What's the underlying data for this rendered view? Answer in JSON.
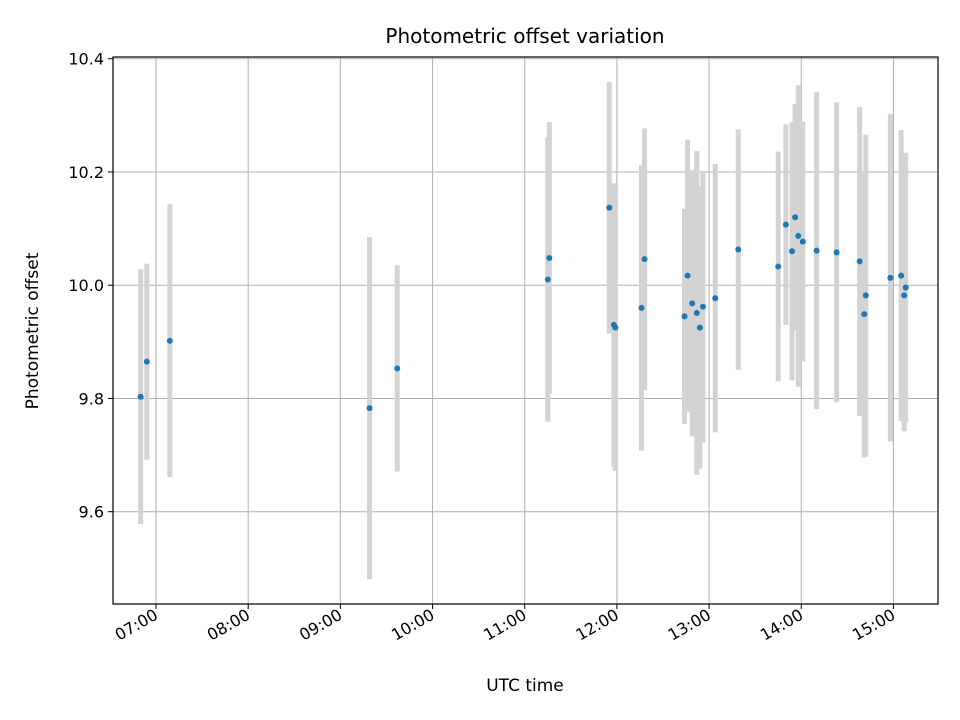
{
  "chart_data": {
    "type": "scatter",
    "title": "Photometric offset variation",
    "xlabel": "UTC time",
    "ylabel": "Photometric offset",
    "x_unit": "UTC hour",
    "xlim": [
      "06:32",
      "15:29"
    ],
    "ylim": [
      9.437,
      10.403
    ],
    "x_ticks": [
      "07:00",
      "08:00",
      "09:00",
      "10:00",
      "11:00",
      "12:00",
      "13:00",
      "14:00",
      "15:00"
    ],
    "y_ticks": [
      9.6,
      9.8,
      10.0,
      10.2,
      10.4
    ],
    "grid": true,
    "errorbar_color": "#d3d3d3",
    "point_color": "#1f77b4",
    "points": [
      {
        "x": "06:50",
        "y": 9.803,
        "yerr": 0.225
      },
      {
        "x": "06:54",
        "y": 9.865,
        "yerr": 0.173
      },
      {
        "x": "07:09",
        "y": 9.902,
        "yerr": 0.241
      },
      {
        "x": "09:19",
        "y": 9.783,
        "yerr": 0.302
      },
      {
        "x": "09:37",
        "y": 9.853,
        "yerr": 0.182
      },
      {
        "x": "11:15",
        "y": 10.01,
        "yerr": 0.251
      },
      {
        "x": "11:16",
        "y": 10.048,
        "yerr": 0.24
      },
      {
        "x": "11:55",
        "y": 10.137,
        "yerr": 0.222
      },
      {
        "x": "11:58",
        "y": 9.93,
        "yerr": 0.25
      },
      {
        "x": "11:59",
        "y": 9.925,
        "yerr": 0.253
      },
      {
        "x": "12:16",
        "y": 9.96,
        "yerr": 0.252
      },
      {
        "x": "12:18",
        "y": 10.046,
        "yerr": 0.231
      },
      {
        "x": "12:44",
        "y": 9.945,
        "yerr": 0.19
      },
      {
        "x": "12:46",
        "y": 10.017,
        "yerr": 0.24
      },
      {
        "x": "12:49",
        "y": 9.968,
        "yerr": 0.235
      },
      {
        "x": "12:52",
        "y": 9.951,
        "yerr": 0.286
      },
      {
        "x": "12:54",
        "y": 9.925,
        "yerr": 0.249
      },
      {
        "x": "12:56",
        "y": 9.962,
        "yerr": 0.24
      },
      {
        "x": "13:04",
        "y": 9.977,
        "yerr": 0.237
      },
      {
        "x": "13:19",
        "y": 10.063,
        "yerr": 0.212
      },
      {
        "x": "13:45",
        "y": 10.033,
        "yerr": 0.203
      },
      {
        "x": "13:50",
        "y": 10.107,
        "yerr": 0.177
      },
      {
        "x": "13:54",
        "y": 10.06,
        "yerr": 0.228
      },
      {
        "x": "13:56",
        "y": 10.12,
        "yerr": 0.2
      },
      {
        "x": "13:58",
        "y": 10.087,
        "yerr": 0.266
      },
      {
        "x": "14:01",
        "y": 10.077,
        "yerr": 0.212
      },
      {
        "x": "14:10",
        "y": 10.061,
        "yerr": 0.28
      },
      {
        "x": "14:23",
        "y": 10.058,
        "yerr": 0.265
      },
      {
        "x": "14:38",
        "y": 10.042,
        "yerr": 0.273
      },
      {
        "x": "14:41",
        "y": 9.949,
        "yerr": 0.253
      },
      {
        "x": "14:42",
        "y": 9.982,
        "yerr": 0.284
      },
      {
        "x": "14:58",
        "y": 10.013,
        "yerr": 0.289
      },
      {
        "x": "15:05",
        "y": 10.017,
        "yerr": 0.257
      },
      {
        "x": "15:07",
        "y": 9.982,
        "yerr": 0.24
      },
      {
        "x": "15:08",
        "y": 9.996,
        "yerr": 0.238
      }
    ]
  }
}
